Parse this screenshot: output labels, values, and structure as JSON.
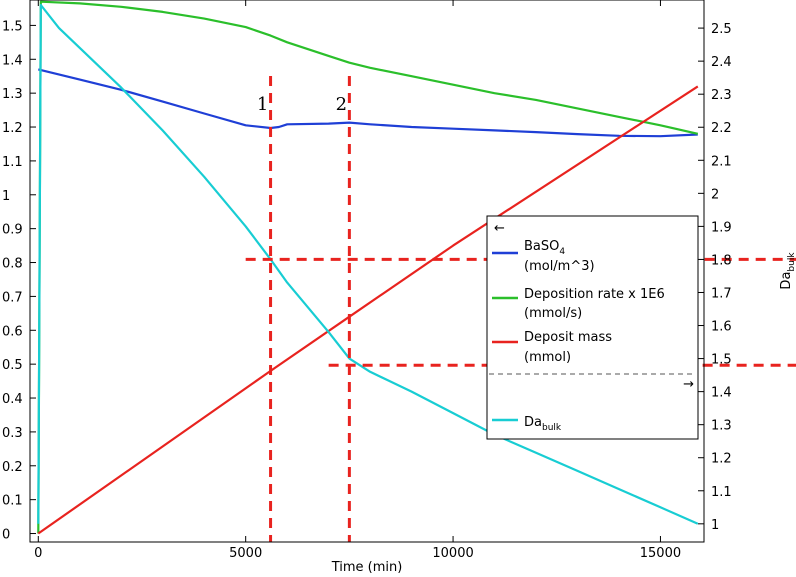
{
  "chart_data": {
    "type": "line",
    "title": "",
    "xlabel": "Time (min)",
    "ylabel_left": "",
    "ylabel_right_main": "Da",
    "ylabel_right_sub": "bulk",
    "xlim": [
      -200,
      16050
    ],
    "ylim_left": [
      -0.025,
      1.575
    ],
    "ylim_right": [
      0.945,
      2.585
    ],
    "x_ticks": [
      0,
      5000,
      10000,
      15000
    ],
    "x_tick_labels": [
      "0",
      "5000",
      "10000",
      "15000"
    ],
    "y_left_ticks": [
      0,
      0.1,
      0.2,
      0.3,
      0.4,
      0.5,
      0.6,
      0.7,
      0.8,
      0.9,
      1,
      1.1,
      1.2,
      1.3,
      1.4,
      1.5
    ],
    "y_left_tick_labels": [
      "0",
      "0.1",
      "0.2",
      "0.3",
      "0.4",
      "0.5",
      "0.6",
      "0.7",
      "0.8",
      "0.9",
      "1",
      "1.1",
      "1.2",
      "1.3",
      "1.4",
      "1.5"
    ],
    "y_right_ticks": [
      1,
      1.1,
      1.2,
      1.3,
      1.4,
      1.5,
      1.6,
      1.7,
      1.8,
      1.9,
      2,
      2.1,
      2.2,
      2.3,
      2.4,
      2.5
    ],
    "y_right_tick_labels": [
      "1",
      "1.1",
      "1.2",
      "1.3",
      "1.4",
      "1.5",
      "1.6",
      "1.7",
      "1.8",
      "1.9",
      "2",
      "2.1",
      "2.2",
      "2.3",
      "2.4",
      "2.5"
    ],
    "grid": false,
    "legend_position": "center-right",
    "series": [
      {
        "key": "baso4",
        "name_main": "BaSO",
        "name_sub": "4",
        "name_line2": "(mol/m^3)",
        "axis": "left",
        "color": "#1f3fd6",
        "x": [
          0,
          1000,
          2000,
          3000,
          4000,
          5000,
          5600,
          5800,
          6000,
          7000,
          7500,
          8000,
          9000,
          10000,
          11000,
          12000,
          13000,
          14000,
          15000,
          15900
        ],
        "y": [
          1.37,
          1.34,
          1.31,
          1.275,
          1.24,
          1.205,
          1.197,
          1.2,
          1.208,
          1.21,
          1.213,
          1.208,
          1.2,
          1.195,
          1.19,
          1.185,
          1.179,
          1.174,
          1.173,
          1.178
        ]
      },
      {
        "key": "deposition_rate",
        "name_main": "Deposition rate x 1E6",
        "name_sub": "",
        "name_line2": "(mmol/s)",
        "axis": "left",
        "color": "#2bbf2b",
        "x": [
          0,
          60,
          1000,
          2000,
          3000,
          4000,
          5000,
          5600,
          6000,
          7000,
          7500,
          8000,
          9000,
          10000,
          11000,
          12000,
          13000,
          14000,
          15000,
          15900
        ],
        "y": [
          0.0,
          1.57,
          1.565,
          1.555,
          1.54,
          1.52,
          1.495,
          1.47,
          1.45,
          1.41,
          1.39,
          1.375,
          1.35,
          1.325,
          1.3,
          1.28,
          1.255,
          1.23,
          1.205,
          1.18
        ]
      },
      {
        "key": "deposit_mass",
        "name_main": "Deposit mass",
        "name_sub": "",
        "name_line2": "(mmol)",
        "axis": "left",
        "color": "#e8231f",
        "x": [
          0,
          5600,
          7500,
          10000,
          15900
        ],
        "y": [
          0.0,
          0.48,
          0.64,
          0.85,
          1.32
        ]
      },
      {
        "key": "da_bulk",
        "name_main": "Da",
        "name_sub": "bulk",
        "name_line2": "",
        "axis": "right",
        "color": "#18cdd3",
        "x": [
          0,
          60,
          500,
          1000,
          2000,
          3000,
          4000,
          5000,
          5600,
          6000,
          7000,
          7500,
          8000,
          9000,
          10000,
          11000,
          12000,
          13000,
          14000,
          15000,
          15900
        ],
        "y": [
          1.0,
          2.57,
          2.5,
          2.44,
          2.32,
          2.19,
          2.05,
          1.9,
          1.8,
          1.73,
          1.58,
          1.5,
          1.46,
          1.4,
          1.335,
          1.27,
          1.215,
          1.16,
          1.105,
          1.05,
          1.0
        ]
      }
    ],
    "annotations": [
      {
        "key": "marker_1",
        "label": "1",
        "x": 5600
      },
      {
        "key": "marker_2",
        "label": "2",
        "x": 7500
      }
    ],
    "reference_lines": [
      {
        "key": "h1",
        "axis": "right",
        "y": 1.8,
        "x_start": 5000
      },
      {
        "key": "h2",
        "axis": "right",
        "y": 1.48,
        "x_start": 7000
      }
    ],
    "reference_color": "#e8231f",
    "legend_arrow_left": "←",
    "legend_arrow_right": "→"
  }
}
